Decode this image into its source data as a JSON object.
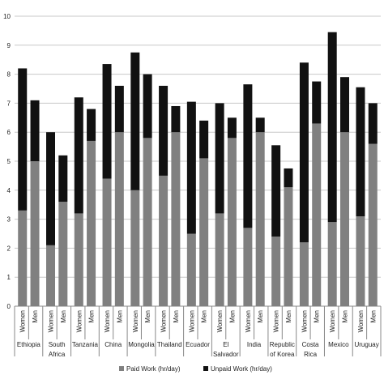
{
  "chart_data": {
    "type": "bar",
    "stacked": true,
    "title": "",
    "xlabel": "",
    "ylabel": "",
    "ylim": [
      0,
      10
    ],
    "yticks": [
      0,
      1,
      2,
      3,
      4,
      5,
      6,
      7,
      8,
      9,
      10
    ],
    "grid": true,
    "legend_position": "bottom",
    "countries": [
      {
        "name": "Ethiopia",
        "lines": [
          "Ethiopia"
        ]
      },
      {
        "name": "South Africa",
        "lines": [
          "South",
          "Africa"
        ]
      },
      {
        "name": "Tanzania",
        "lines": [
          "Tanzania"
        ]
      },
      {
        "name": "China",
        "lines": [
          "China"
        ]
      },
      {
        "name": "Mongolia",
        "lines": [
          "Mongolia"
        ]
      },
      {
        "name": "Thailand",
        "lines": [
          "Thailand"
        ]
      },
      {
        "name": "Ecuador",
        "lines": [
          "Ecuador"
        ]
      },
      {
        "name": "El Salvador",
        "lines": [
          "El",
          "Salvador"
        ]
      },
      {
        "name": "India",
        "lines": [
          "India"
        ]
      },
      {
        "name": "Republic of Korea",
        "lines": [
          "Republic",
          "of Korea"
        ]
      },
      {
        "name": "Costa Rica",
        "lines": [
          "Costa",
          "Rica"
        ]
      },
      {
        "name": "Mexico",
        "lines": [
          "Mexico"
        ]
      },
      {
        "name": "Uruguay",
        "lines": [
          "Uruguay"
        ]
      }
    ],
    "groups": [
      "Women",
      "Men"
    ],
    "categories": [
      "Ethiopia Women",
      "Ethiopia Men",
      "South Africa Women",
      "South Africa Men",
      "Tanzania Women",
      "Tanzania Men",
      "China Women",
      "China Men",
      "Mongolia Women",
      "Mongolia Men",
      "Thailand Women",
      "Thailand Men",
      "Ecuador Women",
      "Ecuador Men",
      "El Salvador Women",
      "El Salvador Men",
      "India Women",
      "India Men",
      "Republic of Korea Women",
      "Republic of Korea Men",
      "Costa Rica Women",
      "Costa Rica Men",
      "Mexico Women",
      "Mexico Men",
      "Uruguay Women",
      "Uruguay Men"
    ],
    "series": [
      {
        "name": "Paid Work (hr/day)",
        "color": "#808080",
        "values": [
          3.3,
          5.0,
          2.1,
          3.6,
          3.2,
          5.7,
          4.4,
          6.0,
          4.0,
          5.8,
          4.5,
          6.0,
          2.5,
          5.1,
          3.2,
          5.8,
          2.7,
          6.0,
          2.4,
          4.1,
          2.2,
          6.3,
          2.9,
          6.0,
          3.1,
          5.6
        ]
      },
      {
        "name": "Unpaid Work (hr/day)",
        "color": "#111111",
        "values": [
          4.9,
          2.1,
          3.9,
          1.6,
          4.0,
          1.1,
          3.95,
          1.6,
          4.75,
          2.2,
          3.1,
          0.9,
          4.55,
          1.3,
          3.8,
          0.7,
          4.95,
          0.5,
          3.15,
          0.65,
          6.2,
          1.45,
          6.55,
          1.9,
          4.45,
          1.4
        ]
      }
    ]
  }
}
